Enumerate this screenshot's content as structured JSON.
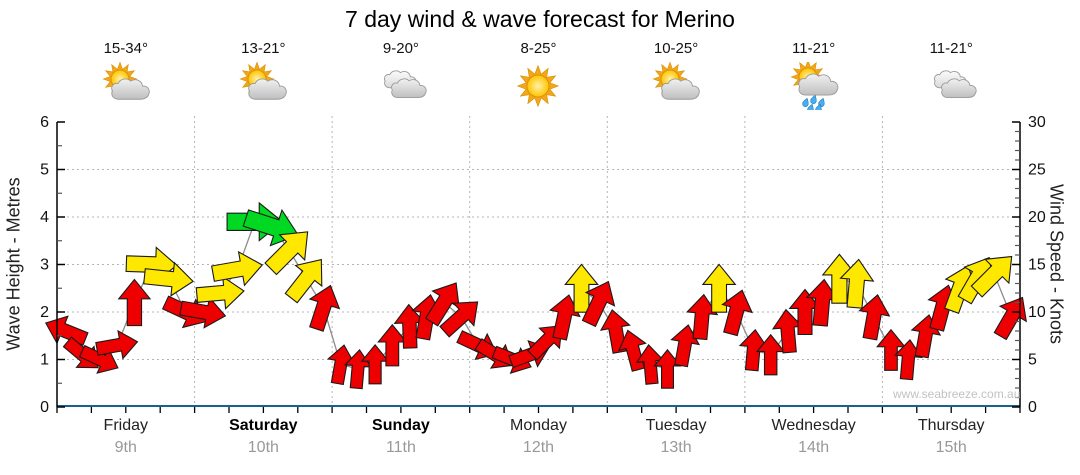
{
  "title": "7 day wind & wave forecast for Merino",
  "watermark": "www.seabreeze.com.au",
  "days": [
    {
      "name": "Friday",
      "date": "9th",
      "temp": "15-34°",
      "icon": "partly-cloudy",
      "bold": false
    },
    {
      "name": "Saturday",
      "date": "10th",
      "temp": "13-21°",
      "icon": "partly-cloudy",
      "bold": true
    },
    {
      "name": "Sunday",
      "date": "11th",
      "temp": "9-20°",
      "icon": "cloudy",
      "bold": true
    },
    {
      "name": "Monday",
      "date": "12th",
      "temp": "8-25°",
      "icon": "sunny",
      "bold": false
    },
    {
      "name": "Tuesday",
      "date": "13th",
      "temp": "10-25°",
      "icon": "showers",
      "bold": false
    },
    {
      "name": "Wednesday",
      "date": "14th",
      "temp": "11-21°",
      "icon": "showers-sun",
      "bold": false
    },
    {
      "name": "Thursday",
      "date": "15th",
      "temp": "11-21°",
      "icon": "cloudy",
      "bold": false
    }
  ],
  "chart_data": {
    "type": "scatter",
    "subtype": "wind-direction-arrows",
    "title": "7 day wind & wave forecast for Merino",
    "left_axis": {
      "label": "Wave Height - Metres",
      "min": 0,
      "max": 6,
      "major_ticks": [
        0,
        1,
        2,
        3,
        4,
        5,
        6
      ],
      "minor_step": 0.5
    },
    "right_axis": {
      "label": "Wind Speed - Knots",
      "min": 0,
      "max": 30,
      "major_ticks": [
        0,
        5,
        10,
        15,
        20,
        25,
        30
      ],
      "minor_step": 1
    },
    "grid": {
      "horizontal_dotted_at_metres": [
        1,
        2,
        3,
        4,
        5
      ],
      "vertical_dotted_day_separators": true
    },
    "wave_height_metres_flat_line": 0,
    "arrow_colors": {
      "red": "#ee0000",
      "yellow": "#ffe800",
      "green": "#00d821"
    },
    "wind": [
      {
        "day": "Friday",
        "points": [
          {
            "knots": 8,
            "dir": 292,
            "color": "red"
          },
          {
            "knots": 5.5,
            "dir": 130,
            "color": "red"
          },
          {
            "knots": 5,
            "dir": 115,
            "color": "red"
          },
          {
            "knots": 6.5,
            "dir": 80,
            "color": "red"
          },
          {
            "knots": 11,
            "dir": 0,
            "color": "red"
          },
          {
            "knots": 15,
            "dir": 92,
            "color": "yellow"
          },
          {
            "knots": 13.5,
            "dir": 96,
            "color": "yellow"
          },
          {
            "knots": 10,
            "dir": 115,
            "color": "red"
          }
        ]
      },
      {
        "day": "Saturday",
        "points": [
          {
            "knots": 10,
            "dir": 100,
            "color": "red"
          },
          {
            "knots": 12,
            "dir": 85,
            "color": "yellow"
          },
          {
            "knots": 14.5,
            "dir": 80,
            "color": "yellow"
          },
          {
            "knots": 19.5,
            "dir": 90,
            "color": "green"
          },
          {
            "knots": 19,
            "dir": 108,
            "color": "green"
          },
          {
            "knots": 16.5,
            "dir": 45,
            "color": "yellow"
          },
          {
            "knots": 13.5,
            "dir": 38,
            "color": "yellow"
          },
          {
            "knots": 10.5,
            "dir": 18,
            "color": "red"
          }
        ]
      },
      {
        "day": "Sunday",
        "points": [
          {
            "knots": 4.5,
            "dir": 10,
            "color": "red"
          },
          {
            "knots": 4,
            "dir": 5,
            "color": "red"
          },
          {
            "knots": 4.5,
            "dir": 0,
            "color": "red"
          },
          {
            "knots": 6.5,
            "dir": 0,
            "color": "red"
          },
          {
            "knots": 8.5,
            "dir": 358,
            "color": "red"
          },
          {
            "knots": 9.5,
            "dir": 10,
            "color": "red"
          },
          {
            "knots": 11,
            "dir": 32,
            "color": "red"
          },
          {
            "knots": 9.5,
            "dir": 48,
            "color": "red"
          }
        ]
      },
      {
        "day": "Monday",
        "points": [
          {
            "knots": 6.5,
            "dir": 115,
            "color": "red"
          },
          {
            "knots": 5.5,
            "dir": 122,
            "color": "red"
          },
          {
            "knots": 5,
            "dir": 112,
            "color": "red"
          },
          {
            "knots": 5.5,
            "dir": 70,
            "color": "red"
          },
          {
            "knots": 7,
            "dir": 45,
            "color": "red"
          },
          {
            "knots": 9.5,
            "dir": 12,
            "color": "red"
          },
          {
            "knots": 12.5,
            "dir": 0,
            "color": "yellow"
          },
          {
            "knots": 11,
            "dir": 25,
            "color": "red"
          }
        ]
      },
      {
        "day": "Tuesday",
        "points": [
          {
            "knots": 8,
            "dir": 350,
            "color": "red"
          },
          {
            "knots": 6,
            "dir": 345,
            "color": "red"
          },
          {
            "knots": 4.5,
            "dir": 355,
            "color": "red"
          },
          {
            "knots": 4,
            "dir": 0,
            "color": "red"
          },
          {
            "knots": 6.5,
            "dir": 10,
            "color": "red"
          },
          {
            "knots": 9.5,
            "dir": 5,
            "color": "red"
          },
          {
            "knots": 12.5,
            "dir": 0,
            "color": "yellow"
          },
          {
            "knots": 10,
            "dir": 15,
            "color": "red"
          }
        ]
      },
      {
        "day": "Wednesday",
        "points": [
          {
            "knots": 6,
            "dir": 5,
            "color": "red"
          },
          {
            "knots": 5.5,
            "dir": 0,
            "color": "red"
          },
          {
            "knots": 8,
            "dir": 355,
            "color": "red"
          },
          {
            "knots": 10,
            "dir": 0,
            "color": "red"
          },
          {
            "knots": 11,
            "dir": 5,
            "color": "red"
          },
          {
            "knots": 13.5,
            "dir": 0,
            "color": "yellow"
          },
          {
            "knots": 13,
            "dir": 5,
            "color": "yellow"
          },
          {
            "knots": 9.5,
            "dir": 10,
            "color": "red"
          }
        ]
      },
      {
        "day": "Thursday",
        "points": [
          {
            "knots": 6,
            "dir": 0,
            "color": "red"
          },
          {
            "knots": 5,
            "dir": 5,
            "color": "red"
          },
          {
            "knots": 7.5,
            "dir": 10,
            "color": "red"
          },
          {
            "knots": 10.5,
            "dir": 15,
            "color": "red"
          },
          {
            "knots": 12.5,
            "dir": 20,
            "color": "yellow"
          },
          {
            "knots": 13.5,
            "dir": 30,
            "color": "yellow"
          },
          {
            "knots": 14,
            "dir": 45,
            "color": "yellow"
          },
          {
            "knots": 9.5,
            "dir": 30,
            "color": "red"
          }
        ]
      }
    ]
  }
}
